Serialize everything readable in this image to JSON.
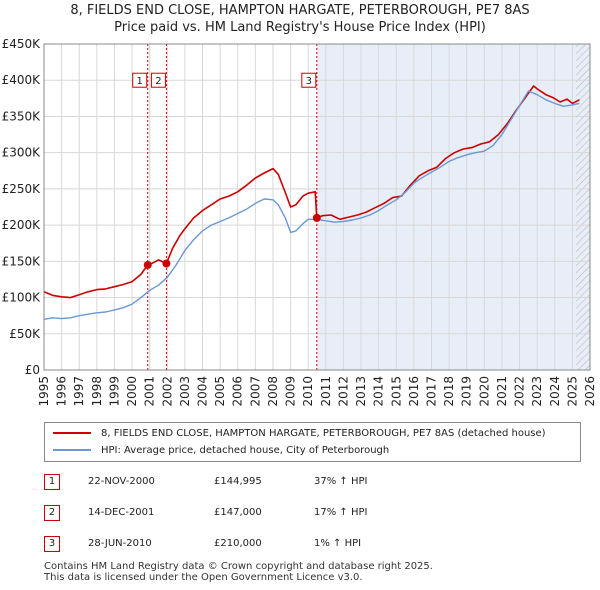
{
  "chart_data": {
    "type": "line",
    "title": "8, FIELDS END CLOSE, HAMPTON HARGATE, PETERBOROUGH, PE7 8AS",
    "subtitle": "Price paid vs. HM Land Registry's House Price Index (HPI)",
    "xlabel": "",
    "ylabel": "",
    "xlim": [
      1995,
      2026
    ],
    "ylim": [
      0,
      450000
    ],
    "x_ticks": [
      1995,
      1996,
      1997,
      1998,
      1999,
      2000,
      2001,
      2002,
      2003,
      2004,
      2005,
      2006,
      2007,
      2008,
      2009,
      2010,
      2011,
      2012,
      2013,
      2014,
      2015,
      2016,
      2017,
      2018,
      2019,
      2020,
      2021,
      2022,
      2023,
      2024,
      2025,
      2026
    ],
    "y_ticks": [
      {
        "value": 0,
        "label": "£0"
      },
      {
        "value": 50000,
        "label": "£50K"
      },
      {
        "value": 100000,
        "label": "£100K"
      },
      {
        "value": 150000,
        "label": "£150K"
      },
      {
        "value": 200000,
        "label": "£200K"
      },
      {
        "value": 250000,
        "label": "£250K"
      },
      {
        "value": 300000,
        "label": "£300K"
      },
      {
        "value": 350000,
        "label": "£350K"
      },
      {
        "value": 400000,
        "label": "£400K"
      },
      {
        "value": 450000,
        "label": "£450K"
      }
    ],
    "grid": true,
    "series": [
      {
        "name": "8, FIELDS END CLOSE, HAMPTON HARGATE, PETERBOROUGH, PE7 8AS (detached house)",
        "color": "#cc0000",
        "x": [
          1995.0,
          1995.5,
          1996.0,
          1996.5,
          1997.0,
          1997.5,
          1998.0,
          1998.5,
          1999.0,
          1999.5,
          2000.0,
          2000.5,
          2000.89,
          2001.2,
          2001.5,
          2001.95,
          2002.3,
          2002.7,
          2003.0,
          2003.5,
          2004.0,
          2004.5,
          2005.0,
          2005.5,
          2006.0,
          2006.5,
          2007.0,
          2007.5,
          2008.0,
          2008.3,
          2008.7,
          2009.0,
          2009.3,
          2009.7,
          2010.0,
          2010.4,
          2010.49,
          2010.8,
          2011.3,
          2011.8,
          2012.3,
          2012.8,
          2013.3,
          2013.8,
          2014.3,
          2014.8,
          2015.3,
          2015.8,
          2016.3,
          2016.8,
          2017.3,
          2017.8,
          2018.3,
          2018.8,
          2019.3,
          2019.8,
          2020.3,
          2020.8,
          2021.3,
          2021.8,
          2022.3,
          2022.8,
          2023.0,
          2023.5,
          2023.9,
          2024.3,
          2024.7,
          2025.0,
          2025.4
        ],
        "values": [
          108000,
          103000,
          101000,
          100000,
          104000,
          108000,
          111000,
          112000,
          115000,
          118000,
          122000,
          132000,
          144995,
          148000,
          152000,
          147000,
          168000,
          185000,
          195000,
          210000,
          220000,
          228000,
          236000,
          240000,
          246000,
          255000,
          265000,
          272000,
          278000,
          270000,
          245000,
          225000,
          228000,
          240000,
          244000,
          246000,
          210000,
          213000,
          214000,
          208000,
          211000,
          214000,
          218000,
          224000,
          230000,
          238000,
          240000,
          255000,
          268000,
          275000,
          280000,
          292000,
          300000,
          305000,
          307000,
          312000,
          315000,
          325000,
          340000,
          358000,
          375000,
          392000,
          388000,
          380000,
          376000,
          370000,
          374000,
          368000,
          373000
        ]
      },
      {
        "name": "HPI: Average price, detached house, City of Peterborough",
        "color": "#6a98d4",
        "x": [
          1995.0,
          1995.5,
          1996.0,
          1996.5,
          1997.0,
          1997.5,
          1998.0,
          1998.5,
          1999.0,
          1999.5,
          2000.0,
          2000.5,
          2001.0,
          2001.5,
          2002.0,
          2002.5,
          2003.0,
          2003.5,
          2004.0,
          2004.5,
          2005.0,
          2005.5,
          2006.0,
          2006.5,
          2007.0,
          2007.5,
          2008.0,
          2008.3,
          2008.7,
          2009.0,
          2009.3,
          2009.7,
          2010.0,
          2010.5,
          2011.0,
          2011.5,
          2012.0,
          2012.5,
          2013.0,
          2013.5,
          2014.0,
          2014.5,
          2015.0,
          2015.5,
          2016.0,
          2016.5,
          2017.0,
          2017.5,
          2018.0,
          2018.5,
          2019.0,
          2019.5,
          2020.0,
          2020.5,
          2021.0,
          2021.5,
          2022.0,
          2022.5,
          2023.0,
          2023.5,
          2024.0,
          2024.5,
          2025.0,
          2025.4
        ],
        "values": [
          70000,
          72000,
          71000,
          72000,
          75000,
          77000,
          79000,
          80000,
          83000,
          86000,
          91000,
          100000,
          110000,
          117000,
          128000,
          145000,
          165000,
          180000,
          192000,
          200000,
          205000,
          210000,
          216000,
          222000,
          230000,
          236000,
          235000,
          228000,
          210000,
          190000,
          192000,
          202000,
          208000,
          208000,
          206000,
          204000,
          205000,
          207000,
          210000,
          214000,
          220000,
          228000,
          235000,
          245000,
          258000,
          266000,
          273000,
          280000,
          288000,
          293000,
          297000,
          300000,
          302000,
          310000,
          325000,
          345000,
          365000,
          385000,
          380000,
          373000,
          368000,
          364000,
          366000,
          368000
        ]
      }
    ],
    "sales": [
      {
        "n": "1",
        "x": 2000.89,
        "price": 144995
      },
      {
        "n": "2",
        "x": 2001.95,
        "price": 147000
      },
      {
        "n": "3",
        "x": 2010.49,
        "price": 210000
      }
    ],
    "shade_from": 2010.49,
    "hatch_from": 2025.2
  },
  "legend": {
    "property": "8, FIELDS END CLOSE, HAMPTON HARGATE, PETERBOROUGH, PE7 8AS (detached house)",
    "hpi": "HPI: Average price, detached house, City of Peterborough"
  },
  "transactions": [
    {
      "n": "1",
      "date": "22-NOV-2000",
      "price": "£144,995",
      "hpi": "37% ↑ HPI"
    },
    {
      "n": "2",
      "date": "14-DEC-2001",
      "price": "£147,000",
      "hpi": "17% ↑ HPI"
    },
    {
      "n": "3",
      "date": "28-JUN-2010",
      "price": "£210,000",
      "hpi": "1% ↑ HPI"
    }
  ],
  "footer": {
    "line1": "Contains HM Land Registry data © Crown copyright and database right 2025.",
    "line2": "This data is licensed under the Open Government Licence v3.0."
  },
  "colors": {
    "property": "#cc0000",
    "hpi": "#6a98d4",
    "shade": "#e8eef8",
    "grid": "#d8d8d8"
  }
}
